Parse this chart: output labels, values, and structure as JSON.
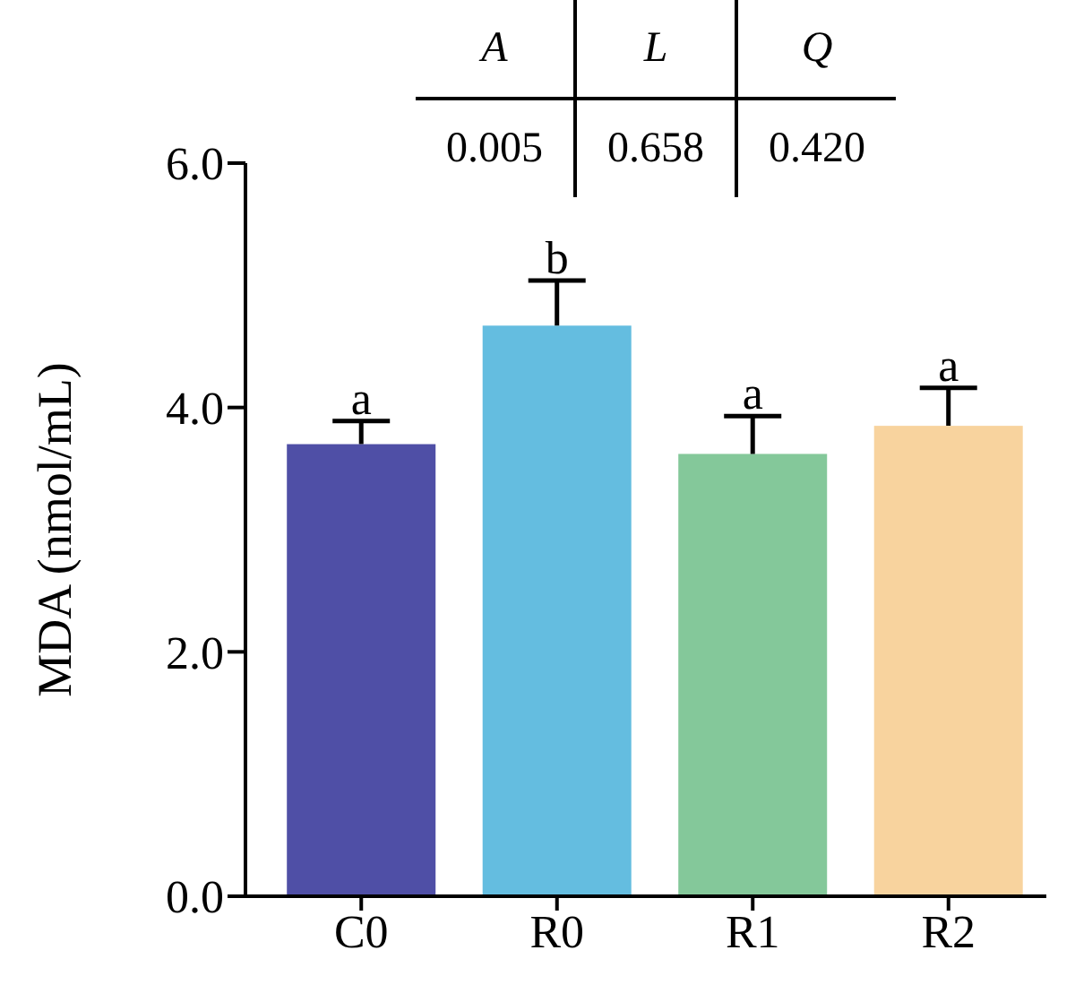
{
  "chart_data": {
    "type": "bar",
    "ylabel": "MDA (nmol/mL)",
    "categories": [
      "C0",
      "R0",
      "R1",
      "R2"
    ],
    "values": [
      3.7,
      4.67,
      3.62,
      3.85
    ],
    "colors": [
      "#4f4fa6",
      "#64bde0",
      "#84c89a",
      "#f8d39e"
    ],
    "errors": [
      0.19,
      0.37,
      0.31,
      0.31
    ],
    "ylim": [
      0,
      6
    ],
    "yticks": [
      {
        "value": 0,
        "label": "0.0"
      },
      {
        "value": 2,
        "label": "2.0"
      },
      {
        "value": 4,
        "label": "4.0"
      },
      {
        "value": 6,
        "label": "6.0"
      }
    ],
    "grid": false,
    "legend": false,
    "annotations": [
      "A",
      "L",
      "Q",
      "0.005",
      "0.658",
      "0.420",
      {
        "text": "a",
        "x": "C0",
        "y": 3.89
      },
      {
        "text": "b",
        "x": "R0",
        "y": 5.04
      },
      {
        "text": "a",
        "x": "R1",
        "y": 3.93
      },
      {
        "text": "a",
        "x": "R2",
        "y": 4.16
      }
    ]
  }
}
